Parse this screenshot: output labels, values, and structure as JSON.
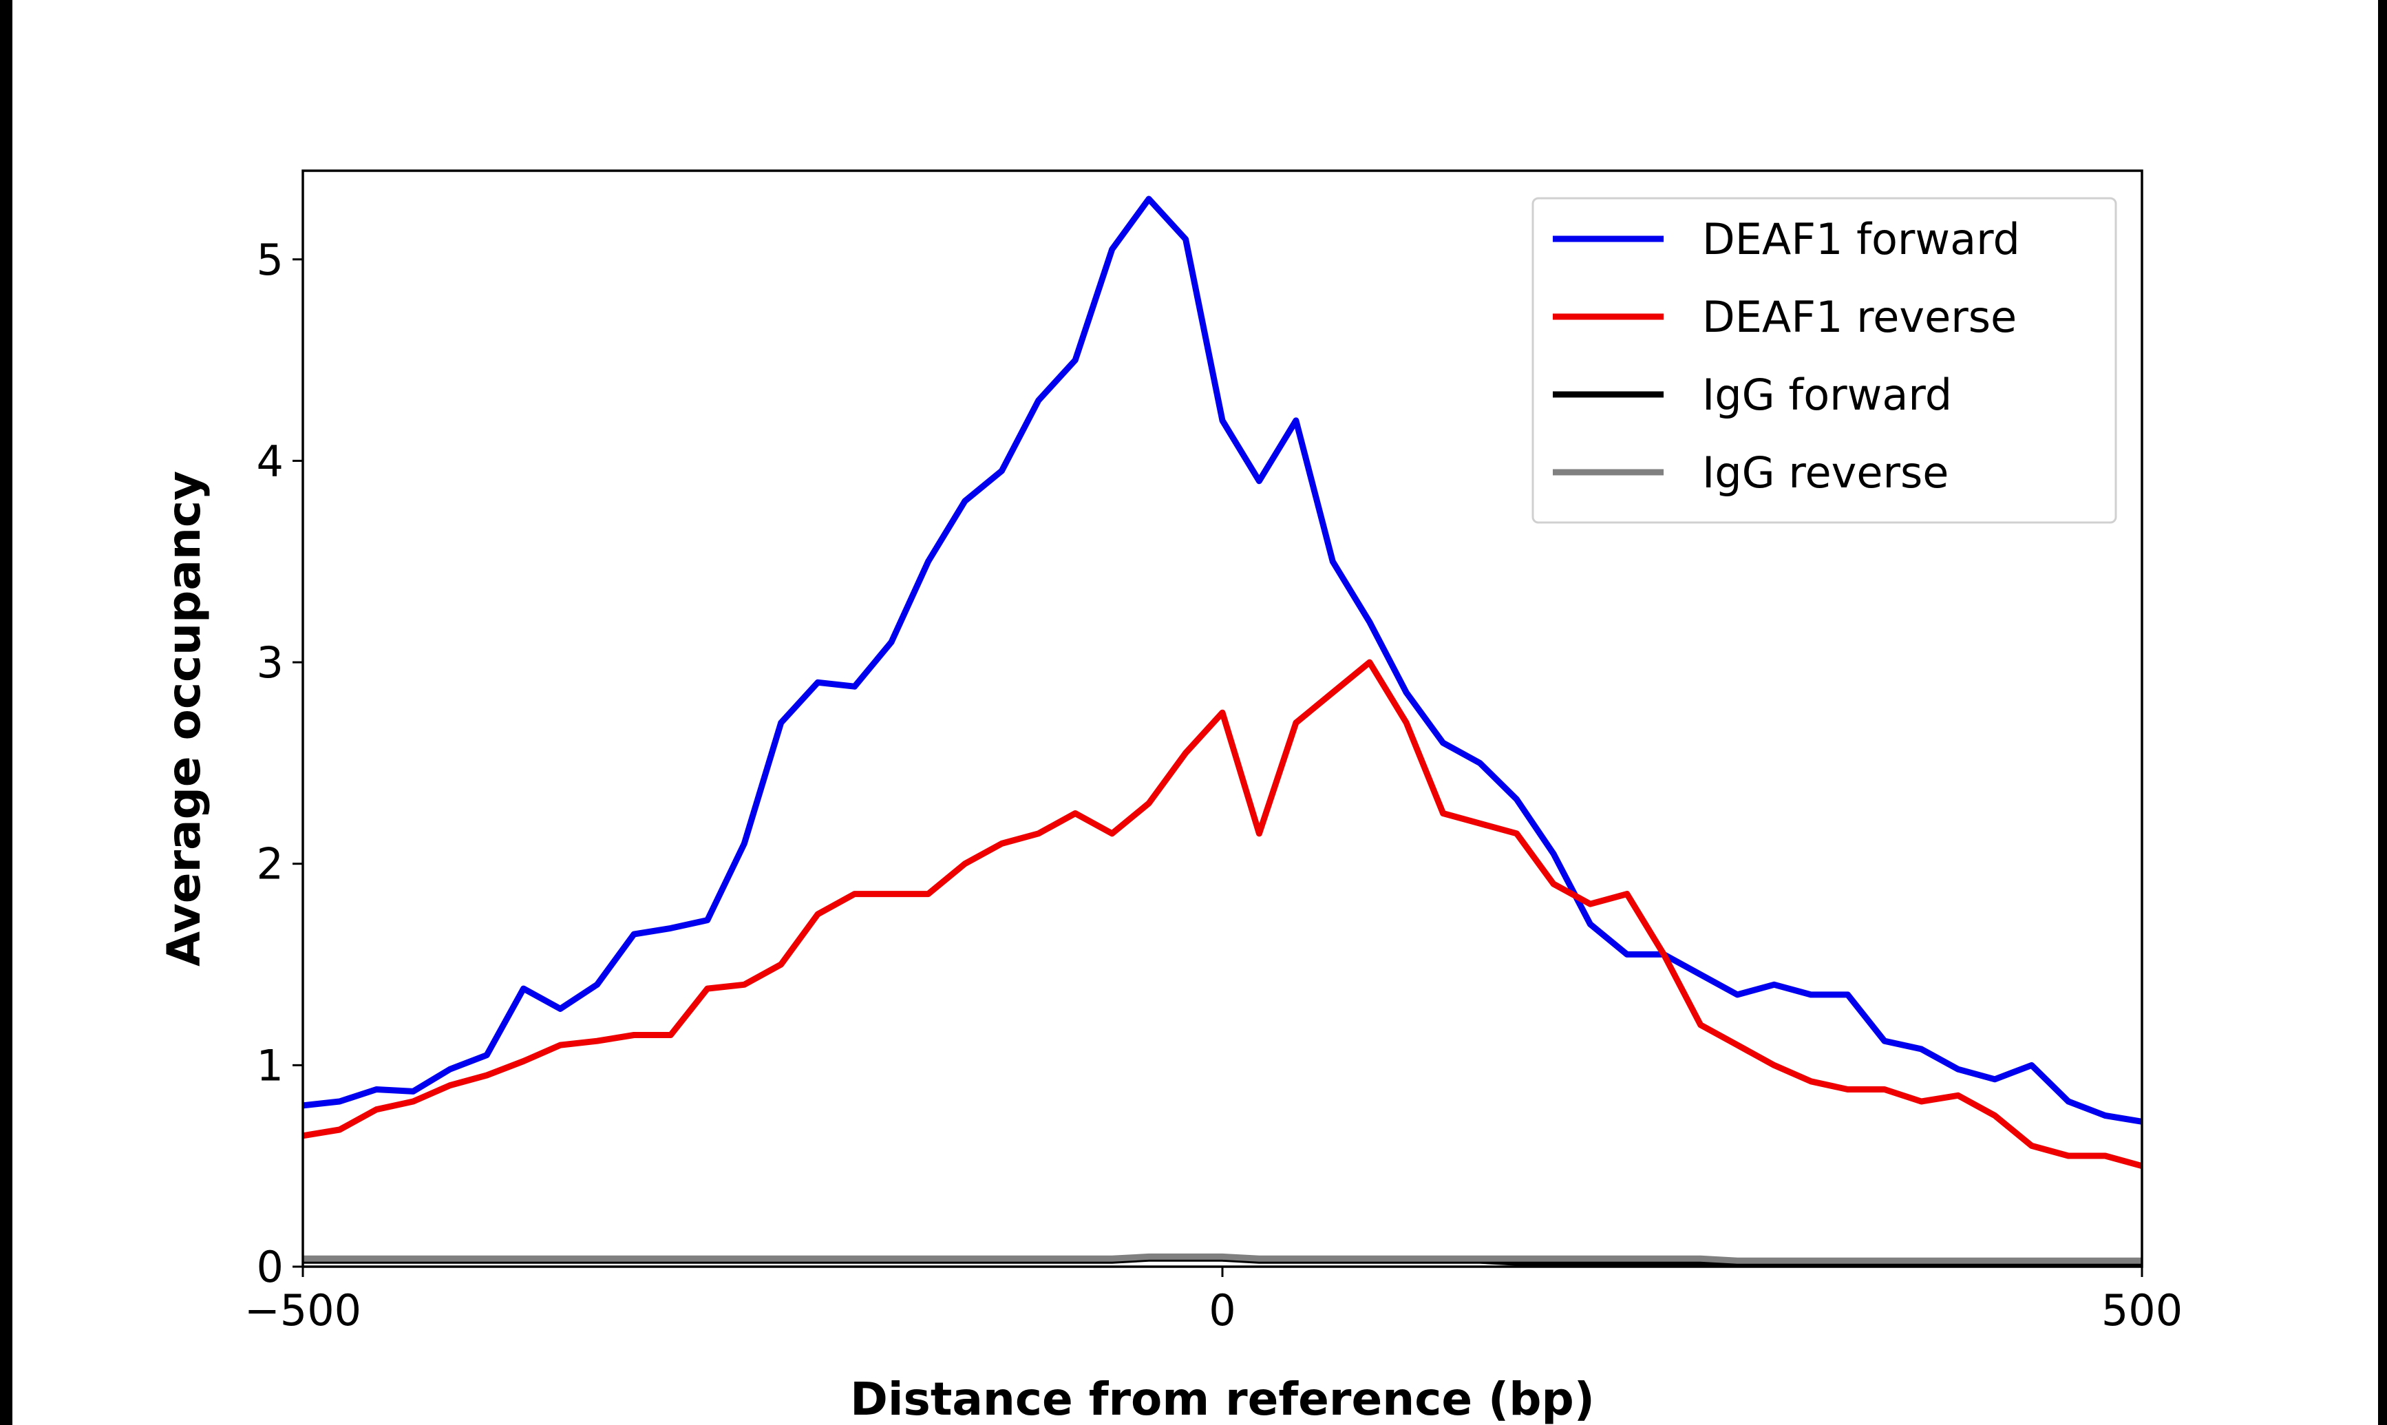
{
  "chart_data": {
    "type": "line",
    "xlabel": "Distance from reference (bp)",
    "ylabel": "Average occupancy",
    "x": [
      -500,
      -480,
      -460,
      -440,
      -420,
      -400,
      -380,
      -360,
      -340,
      -320,
      -300,
      -280,
      -260,
      -240,
      -220,
      -200,
      -180,
      -160,
      -140,
      -120,
      -100,
      -80,
      -60,
      -40,
      -20,
      0,
      20,
      40,
      60,
      80,
      100,
      120,
      140,
      160,
      180,
      200,
      220,
      240,
      260,
      280,
      300,
      320,
      340,
      360,
      380,
      400,
      420,
      440,
      460,
      480,
      500
    ],
    "series": [
      {
        "name": "DEAF1 forward",
        "color": "#0000ee",
        "values": [
          0.8,
          0.82,
          0.88,
          0.87,
          0.98,
          1.05,
          1.38,
          1.28,
          1.4,
          1.65,
          1.68,
          1.72,
          2.1,
          2.7,
          2.9,
          2.88,
          3.1,
          3.5,
          3.8,
          3.95,
          4.3,
          4.5,
          5.05,
          5.3,
          5.1,
          4.2,
          3.9,
          4.2,
          3.5,
          3.2,
          2.85,
          2.6,
          2.5,
          2.32,
          2.05,
          1.7,
          1.55,
          1.55,
          1.45,
          1.35,
          1.4,
          1.35,
          1.35,
          1.12,
          1.08,
          0.98,
          0.93,
          1.0,
          0.82,
          0.75,
          0.72
        ]
      },
      {
        "name": "DEAF1 reverse",
        "color": "#ee0000",
        "values": [
          0.65,
          0.68,
          0.78,
          0.82,
          0.9,
          0.95,
          1.02,
          1.1,
          1.12,
          1.15,
          1.15,
          1.38,
          1.4,
          1.5,
          1.75,
          1.85,
          1.85,
          1.85,
          2.0,
          2.1,
          2.15,
          2.25,
          2.15,
          2.3,
          2.55,
          2.75,
          2.15,
          2.7,
          2.85,
          3.0,
          2.7,
          2.25,
          2.2,
          2.15,
          1.9,
          1.8,
          1.85,
          1.55,
          1.2,
          1.1,
          1.0,
          0.92,
          0.88,
          0.88,
          0.82,
          0.85,
          0.75,
          0.6,
          0.55,
          0.55,
          0.5
        ]
      },
      {
        "name": "IgG forward",
        "color": "#000000",
        "values": [
          0.03,
          0.03,
          0.03,
          0.03,
          0.03,
          0.03,
          0.03,
          0.03,
          0.03,
          0.03,
          0.03,
          0.03,
          0.03,
          0.03,
          0.03,
          0.03,
          0.03,
          0.03,
          0.03,
          0.03,
          0.03,
          0.03,
          0.03,
          0.04,
          0.04,
          0.04,
          0.03,
          0.03,
          0.03,
          0.03,
          0.03,
          0.03,
          0.03,
          0.02,
          0.02,
          0.02,
          0.02,
          0.02,
          0.02,
          0.02,
          0.02,
          0.02,
          0.02,
          0.02,
          0.02,
          0.02,
          0.02,
          0.02,
          0.02,
          0.02,
          0.02
        ]
      },
      {
        "name": "IgG reverse",
        "color": "#808080",
        "values": [
          0.04,
          0.04,
          0.04,
          0.04,
          0.04,
          0.04,
          0.04,
          0.04,
          0.04,
          0.04,
          0.04,
          0.04,
          0.04,
          0.04,
          0.04,
          0.04,
          0.04,
          0.04,
          0.04,
          0.04,
          0.04,
          0.04,
          0.04,
          0.05,
          0.05,
          0.05,
          0.04,
          0.04,
          0.04,
          0.04,
          0.04,
          0.04,
          0.04,
          0.04,
          0.04,
          0.04,
          0.04,
          0.04,
          0.04,
          0.03,
          0.03,
          0.03,
          0.03,
          0.03,
          0.03,
          0.03,
          0.03,
          0.03,
          0.03,
          0.03,
          0.03
        ]
      }
    ],
    "xlim": [
      -500,
      500
    ],
    "xticks": [
      {
        "value": -500,
        "label": "−500"
      },
      0,
      500
    ],
    "ylim": [
      0,
      5.44
    ],
    "yticks": [
      0,
      1,
      2,
      3,
      4,
      5
    ],
    "legend": "upper right"
  }
}
